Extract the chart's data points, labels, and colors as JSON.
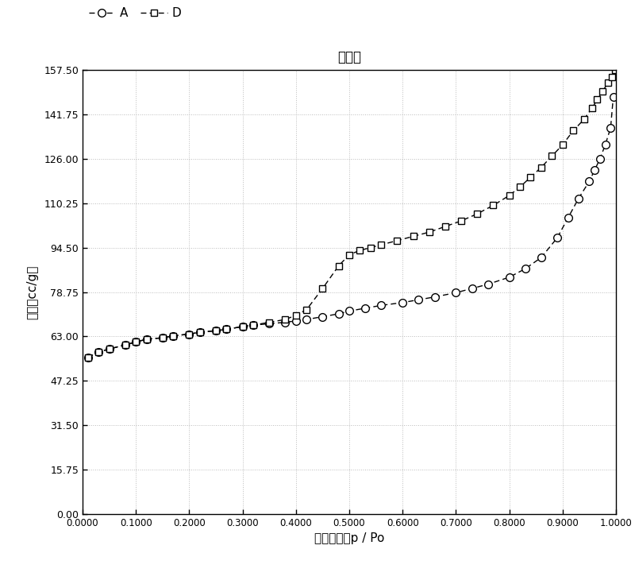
{
  "title": "等温线",
  "xlabel": "相对压力，p / Po",
  "ylabel": "体积【cc/g】",
  "legend_A": "A",
  "legend_D": "D",
  "ylim": [
    0.0,
    157.5
  ],
  "xlim": [
    0.0,
    1.0
  ],
  "yticks": [
    0.0,
    15.75,
    31.5,
    47.25,
    63.0,
    78.75,
    94.5,
    110.25,
    126.0,
    141.75,
    157.5
  ],
  "xticks": [
    0.0,
    0.1,
    0.2,
    0.3,
    0.4,
    0.5,
    0.6,
    0.7,
    0.8,
    0.9,
    1.0
  ],
  "xtick_labels": [
    "0.0000",
    "0.1000",
    "0.2000",
    "0.3000",
    "0.4000",
    "0.5000",
    "0.6000",
    "0.7000",
    "0.8000",
    "0.9000",
    "1.0000"
  ],
  "series_A_x": [
    0.01,
    0.03,
    0.05,
    0.08,
    0.1,
    0.12,
    0.15,
    0.17,
    0.2,
    0.22,
    0.25,
    0.27,
    0.3,
    0.32,
    0.35,
    0.38,
    0.4,
    0.42,
    0.45,
    0.48,
    0.5,
    0.53,
    0.56,
    0.6,
    0.63,
    0.66,
    0.7,
    0.73,
    0.76,
    0.8,
    0.83,
    0.86,
    0.89,
    0.91,
    0.93,
    0.95,
    0.96,
    0.97,
    0.98,
    0.99,
    0.995
  ],
  "series_A_y": [
    55.5,
    57.5,
    58.5,
    60.0,
    61.0,
    62.0,
    62.5,
    63.2,
    63.8,
    64.5,
    65.0,
    65.5,
    66.5,
    67.0,
    67.5,
    68.0,
    68.5,
    69.0,
    70.0,
    71.0,
    72.0,
    73.0,
    74.0,
    75.0,
    76.0,
    77.0,
    78.5,
    80.0,
    81.5,
    84.0,
    87.0,
    91.0,
    98.0,
    105.0,
    112.0,
    118.0,
    122.0,
    126.0,
    131.0,
    137.0,
    148.0
  ],
  "series_D_x": [
    0.01,
    0.03,
    0.05,
    0.08,
    0.1,
    0.12,
    0.15,
    0.17,
    0.2,
    0.22,
    0.25,
    0.27,
    0.3,
    0.32,
    0.35,
    0.38,
    0.4,
    0.42,
    0.45,
    0.48,
    0.5,
    0.52,
    0.54,
    0.56,
    0.59,
    0.62,
    0.65,
    0.68,
    0.71,
    0.74,
    0.77,
    0.8,
    0.82,
    0.84,
    0.86,
    0.88,
    0.9,
    0.92,
    0.94,
    0.955,
    0.965,
    0.975,
    0.985,
    0.993,
    0.998
  ],
  "series_D_y": [
    55.5,
    57.5,
    58.5,
    60.0,
    61.0,
    62.0,
    62.5,
    63.2,
    63.8,
    64.5,
    65.0,
    65.5,
    66.5,
    67.0,
    68.0,
    69.0,
    70.5,
    72.5,
    80.0,
    88.0,
    92.0,
    93.5,
    94.5,
    95.5,
    97.0,
    98.5,
    100.0,
    102.0,
    104.0,
    106.5,
    109.5,
    113.0,
    116.0,
    119.5,
    123.0,
    127.0,
    131.0,
    136.0,
    140.0,
    144.0,
    147.0,
    150.0,
    153.0,
    155.0,
    157.5
  ],
  "line_color": "#000000",
  "bg_color": "#ffffff",
  "grid_color": "#bbbbbb"
}
